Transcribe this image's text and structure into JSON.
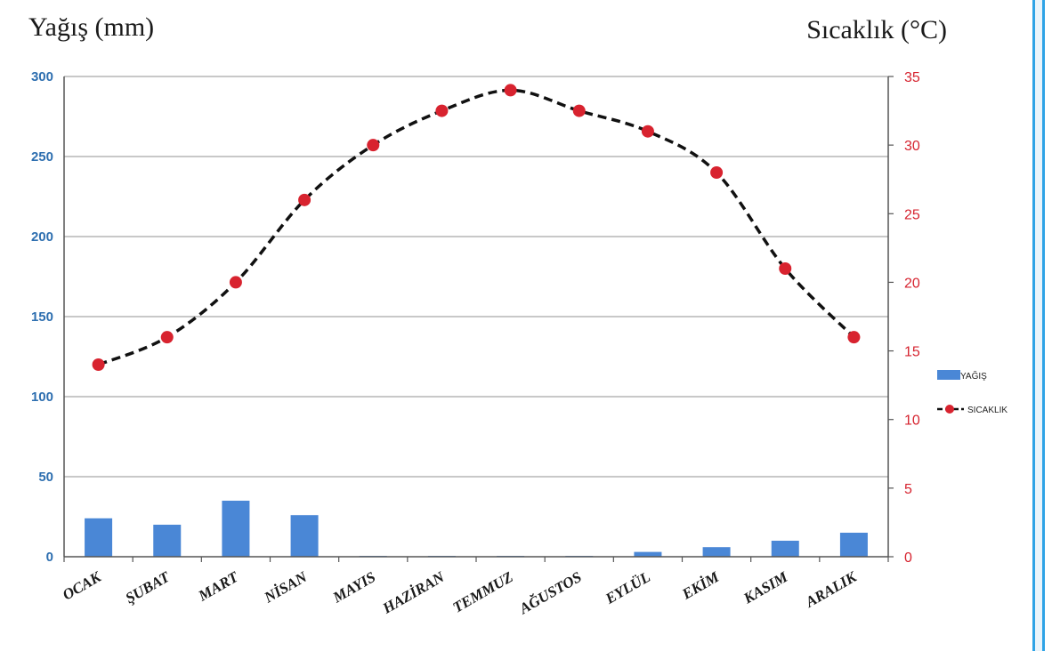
{
  "colors": {
    "bar": "#4a87d6",
    "line": "#111111",
    "marker": "#d8232f",
    "left_axis_text": "#2e6fb0",
    "right_axis_text": "#d6232f",
    "grid": "#b5b5b5",
    "frame": "#2ea3e6"
  },
  "chart_data": {
    "type": "bar",
    "left_axis_title": "Yağış (mm)",
    "right_axis_title": "Sıcaklık (°C)",
    "categories": [
      "OCAK",
      "ŞUBAT",
      "MART",
      "NİSAN",
      "MAYIS",
      "HAZİRAN",
      "TEMMUZ",
      "AĞUSTOS",
      "EYLÜL",
      "EKİM",
      "KASIM",
      "ARALIK"
    ],
    "yleft_lim": [
      0,
      300
    ],
    "yleft_ticks": [
      "0",
      "50",
      "100",
      "150",
      "200",
      "250",
      "300"
    ],
    "yright_lim": [
      0,
      35
    ],
    "yright_ticks": [
      "0",
      "5",
      "10",
      "15",
      "20",
      "25",
      "30",
      "35"
    ],
    "grid": true,
    "legend_position": "right",
    "series": [
      {
        "name": "YAĞIŞ",
        "type": "bar",
        "axis": "left",
        "values": [
          24,
          20,
          35,
          26,
          0.5,
          0.5,
          0.5,
          0.5,
          3,
          6,
          10,
          15
        ]
      },
      {
        "name": "SICAKLIK",
        "type": "line",
        "axis": "right",
        "style": "dashed",
        "marker": "circle",
        "values": [
          14,
          16,
          20,
          26,
          30,
          32.5,
          34,
          32.5,
          31,
          28,
          21,
          16
        ]
      }
    ]
  }
}
